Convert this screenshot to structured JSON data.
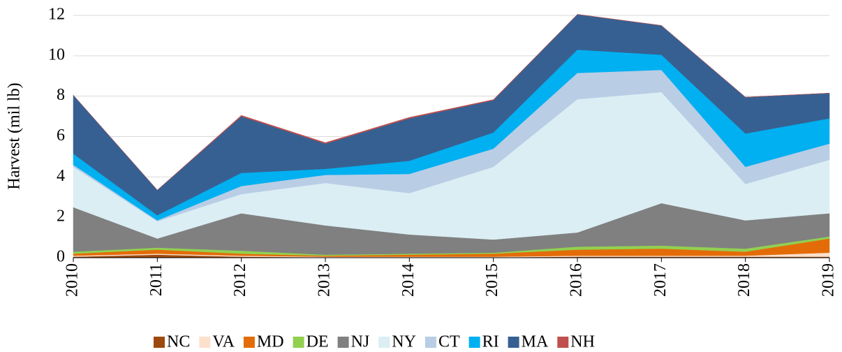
{
  "chart_data": {
    "type": "stacked-area",
    "ylabel": "Harvest (mil lb)",
    "categories": [
      "2010",
      "2011",
      "2012",
      "2013",
      "2014",
      "2015",
      "2016",
      "2017",
      "2018",
      "2019"
    ],
    "ylim": [
      0,
      12
    ],
    "yticks": [
      0,
      2,
      4,
      6,
      8,
      10,
      12
    ],
    "grid": true,
    "legend": "bottom",
    "series": [
      {
        "name": "NC",
        "color": "#9c4a0f",
        "values": [
          0.05,
          0.15,
          0.05,
          0.02,
          0.02,
          0.02,
          0.05,
          0.05,
          0.05,
          0.05
        ]
      },
      {
        "name": "VA",
        "color": "#fde0cc",
        "values": [
          0.05,
          0.05,
          0.05,
          0.03,
          0.03,
          0.03,
          0.05,
          0.05,
          0.05,
          0.2
        ]
      },
      {
        "name": "MD",
        "color": "#e36c09",
        "values": [
          0.1,
          0.2,
          0.1,
          0.05,
          0.1,
          0.15,
          0.3,
          0.35,
          0.2,
          0.7
        ]
      },
      {
        "name": "DE",
        "color": "#92d050",
        "values": [
          0.1,
          0.1,
          0.15,
          0.05,
          0.05,
          0.05,
          0.15,
          0.15,
          0.15,
          0.1
        ]
      },
      {
        "name": "NJ",
        "color": "#808080",
        "values": [
          2.2,
          0.45,
          1.85,
          1.45,
          0.95,
          0.65,
          0.7,
          2.1,
          1.4,
          1.15
        ]
      },
      {
        "name": "NY",
        "color": "#dbeef4",
        "values": [
          2.0,
          0.85,
          0.95,
          2.1,
          2.05,
          3.6,
          6.6,
          5.5,
          1.8,
          2.65
        ]
      },
      {
        "name": "CT",
        "color": "#b9cde5",
        "values": [
          0.1,
          0.05,
          0.4,
          0.4,
          0.95,
          0.9,
          1.3,
          1.1,
          0.85,
          0.8
        ]
      },
      {
        "name": "RI",
        "color": "#00b0f0",
        "values": [
          0.55,
          0.25,
          0.65,
          0.3,
          0.65,
          0.8,
          1.15,
          0.75,
          1.65,
          1.25
        ]
      },
      {
        "name": "MA",
        "color": "#376092",
        "values": [
          2.9,
          1.25,
          2.8,
          1.25,
          2.1,
          1.6,
          1.75,
          1.45,
          1.8,
          1.25
        ]
      },
      {
        "name": "NH",
        "color": "#c0504d",
        "values": [
          0,
          0,
          0.05,
          0.05,
          0.05,
          0.03,
          0,
          0,
          0,
          0
        ]
      }
    ]
  }
}
